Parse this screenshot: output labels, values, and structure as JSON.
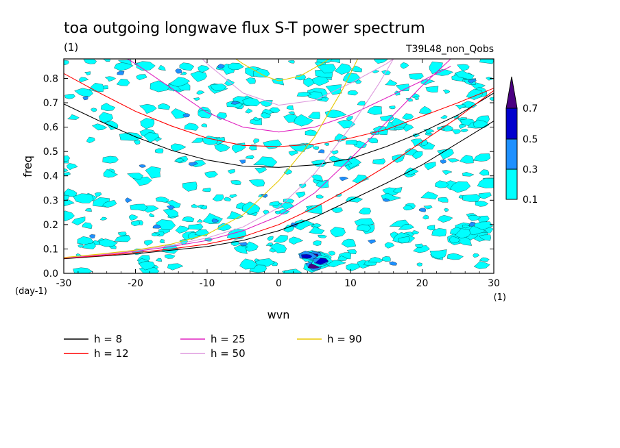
{
  "chart_data": {
    "type": "contour",
    "title": "toa outgoing longwave flux S-T power spectrum",
    "subtitle_left": "(1)",
    "subtitle_right": "T39L48_non_Qobs",
    "xlabel": "wvn",
    "ylabel": "freq",
    "x_unit": "(1)",
    "y_unit": "(day-1)",
    "xlim": [
      -30,
      30
    ],
    "ylim": [
      0,
      0.88
    ],
    "x_ticks": [
      -30,
      -20,
      -10,
      0,
      10,
      20,
      30
    ],
    "x_tick_labels": [
      "-30",
      "-20",
      "-10",
      "0",
      "10",
      "20",
      "30"
    ],
    "y_ticks": [
      0,
      0.1,
      0.2,
      0.3,
      0.4,
      0.5,
      0.6,
      0.7,
      0.8
    ],
    "y_tick_labels": [
      "0.0",
      "0.1",
      "0.2",
      "0.3",
      "0.4",
      "0.5",
      "0.6",
      "0.7",
      "0.8"
    ],
    "colorbar": {
      "levels": [
        "0.1",
        "0.3",
        "0.5",
        "0.7"
      ],
      "colors": [
        "#00ffff",
        "#1e90ff",
        "#0000cd",
        "#4b0082"
      ]
    },
    "dispersion_curves": [
      {
        "name": "h =  8",
        "color": "#000000",
        "upper": [
          [
            -30,
            0.695
          ],
          [
            -25,
            0.625
          ],
          [
            -20,
            0.56
          ],
          [
            -15,
            0.505
          ],
          [
            -10,
            0.465
          ],
          [
            -5,
            0.44
          ],
          [
            0,
            0.435
          ],
          [
            5,
            0.445
          ],
          [
            10,
            0.47
          ],
          [
            15,
            0.52
          ],
          [
            20,
            0.58
          ],
          [
            25,
            0.65
          ],
          [
            30,
            0.74
          ]
        ],
        "lower": [
          [
            -30,
            0.06
          ],
          [
            -25,
            0.07
          ],
          [
            -20,
            0.08
          ],
          [
            -15,
            0.095
          ],
          [
            -10,
            0.11
          ],
          [
            -5,
            0.135
          ],
          [
            0,
            0.175
          ],
          [
            5,
            0.23
          ],
          [
            10,
            0.3
          ],
          [
            15,
            0.37
          ],
          [
            20,
            0.445
          ],
          [
            25,
            0.535
          ],
          [
            30,
            0.625
          ]
        ]
      },
      {
        "name": "h = 12",
        "color": "#ff0000",
        "upper": [
          [
            -30,
            0.82
          ],
          [
            -25,
            0.74
          ],
          [
            -20,
            0.665
          ],
          [
            -15,
            0.605
          ],
          [
            -10,
            0.555
          ],
          [
            -5,
            0.525
          ],
          [
            0,
            0.52
          ],
          [
            5,
            0.53
          ],
          [
            10,
            0.555
          ],
          [
            15,
            0.59
          ],
          [
            20,
            0.645
          ],
          [
            25,
            0.7
          ],
          [
            30,
            0.76
          ]
        ],
        "lower": [
          [
            -30,
            0.062
          ],
          [
            -25,
            0.072
          ],
          [
            -20,
            0.085
          ],
          [
            -15,
            0.1
          ],
          [
            -10,
            0.12
          ],
          [
            -5,
            0.15
          ],
          [
            0,
            0.2
          ],
          [
            5,
            0.27
          ],
          [
            10,
            0.35
          ],
          [
            15,
            0.44
          ],
          [
            20,
            0.54
          ],
          [
            25,
            0.64
          ],
          [
            30,
            0.75
          ]
        ]
      },
      {
        "name": "h = 25",
        "color": "#e020c0",
        "upper": [
          [
            -25,
            0.95
          ],
          [
            -20,
            0.86
          ],
          [
            -15,
            0.76
          ],
          [
            -10,
            0.66
          ],
          [
            -5,
            0.6
          ],
          [
            0,
            0.58
          ],
          [
            5,
            0.6
          ],
          [
            10,
            0.65
          ],
          [
            15,
            0.72
          ],
          [
            20,
            0.79
          ],
          [
            24,
            0.85
          ]
        ],
        "lower": [
          [
            -30,
            0.063
          ],
          [
            -25,
            0.075
          ],
          [
            -20,
            0.09
          ],
          [
            -15,
            0.11
          ],
          [
            -10,
            0.135
          ],
          [
            -5,
            0.175
          ],
          [
            0,
            0.235
          ],
          [
            5,
            0.33
          ],
          [
            10,
            0.47
          ],
          [
            15,
            0.62
          ],
          [
            20,
            0.77
          ],
          [
            24,
            0.88
          ]
        ]
      },
      {
        "name": "h = 50",
        "color": "#dd99dd",
        "upper": [
          [
            -13,
            0.95
          ],
          [
            -10,
            0.86
          ],
          [
            -5,
            0.74
          ],
          [
            0,
            0.69
          ],
          [
            5,
            0.71
          ],
          [
            10,
            0.78
          ],
          [
            15,
            0.86
          ],
          [
            17,
            0.9
          ]
        ],
        "lower": [
          [
            -30,
            0.064
          ],
          [
            -25,
            0.077
          ],
          [
            -20,
            0.093
          ],
          [
            -15,
            0.115
          ],
          [
            -10,
            0.145
          ],
          [
            -5,
            0.19
          ],
          [
            0,
            0.27
          ],
          [
            5,
            0.41
          ],
          [
            10,
            0.6
          ],
          [
            14,
            0.78
          ],
          [
            16,
            0.88
          ]
        ]
      },
      {
        "name": "h = 90",
        "color": "#e8c800",
        "upper": [
          [
            -7,
            0.9
          ],
          [
            -5,
            0.86
          ],
          [
            -2,
            0.81
          ],
          [
            0,
            0.79
          ],
          [
            3,
            0.81
          ],
          [
            6,
            0.86
          ],
          [
            8,
            0.9
          ]
        ],
        "lower": [
          [
            -30,
            0.065
          ],
          [
            -25,
            0.079
          ],
          [
            -20,
            0.095
          ],
          [
            -15,
            0.12
          ],
          [
            -10,
            0.16
          ],
          [
            -5,
            0.24
          ],
          [
            0,
            0.38
          ],
          [
            5,
            0.56
          ],
          [
            9,
            0.76
          ],
          [
            11,
            0.88
          ]
        ]
      }
    ],
    "contour_blobs": [
      {
        "x": 5,
        "y": 0.07,
        "l": 3
      },
      {
        "x": 5,
        "y": 0.03,
        "l": 3
      },
      {
        "x": 4,
        "y": 0.07,
        "l": 2
      },
      {
        "x": 6,
        "y": 0.05,
        "l": 2
      },
      {
        "x": -19,
        "y": 0.44,
        "l": 1
      },
      {
        "x": -26,
        "y": 0.15,
        "l": 1
      },
      {
        "x": -9,
        "y": 0.215,
        "l": 1
      },
      {
        "x": -5,
        "y": 0.46,
        "l": 1
      },
      {
        "x": -14,
        "y": 0.83,
        "l": 1
      },
      {
        "x": -8,
        "y": 0.85,
        "l": 1
      },
      {
        "x": -13,
        "y": 0.65,
        "l": 1
      },
      {
        "x": -21,
        "y": 0.3,
        "l": 1
      },
      {
        "x": -12,
        "y": 0.45,
        "l": 1
      },
      {
        "x": -5,
        "y": 0.12,
        "l": 1
      },
      {
        "x": -27,
        "y": 0.72,
        "l": 1
      },
      {
        "x": -17,
        "y": 0.19,
        "l": 1
      },
      {
        "x": 6,
        "y": 0.5,
        "l": 1
      },
      {
        "x": 13,
        "y": 0.13,
        "l": 1
      },
      {
        "x": 15,
        "y": 0.3,
        "l": 1
      },
      {
        "x": 16,
        "y": 0.04,
        "l": 1
      },
      {
        "x": 20,
        "y": 0.26,
        "l": 1
      },
      {
        "x": 27,
        "y": 0.79,
        "l": 1
      },
      {
        "x": 27,
        "y": 0.2,
        "l": 1
      },
      {
        "x": -22,
        "y": 0.82,
        "l": 1
      },
      {
        "x": -2,
        "y": 0.32,
        "l": 1
      },
      {
        "x": 9,
        "y": 0.39,
        "l": 1
      },
      {
        "x": -15,
        "y": 0.27,
        "l": 1
      },
      {
        "x": 2,
        "y": 0.2,
        "l": 1
      },
      {
        "x": 23,
        "y": 0.46,
        "l": 1
      },
      {
        "x": -6,
        "y": 0.7,
        "l": 1
      }
    ]
  },
  "legend": [
    {
      "label": "h =  8",
      "color": "#000000"
    },
    {
      "label": "h = 12",
      "color": "#ff0000"
    },
    {
      "label": "h = 25",
      "color": "#e020c0"
    },
    {
      "label": "h = 50",
      "color": "#dd99dd"
    },
    {
      "label": "h = 90",
      "color": "#e8c800"
    }
  ]
}
